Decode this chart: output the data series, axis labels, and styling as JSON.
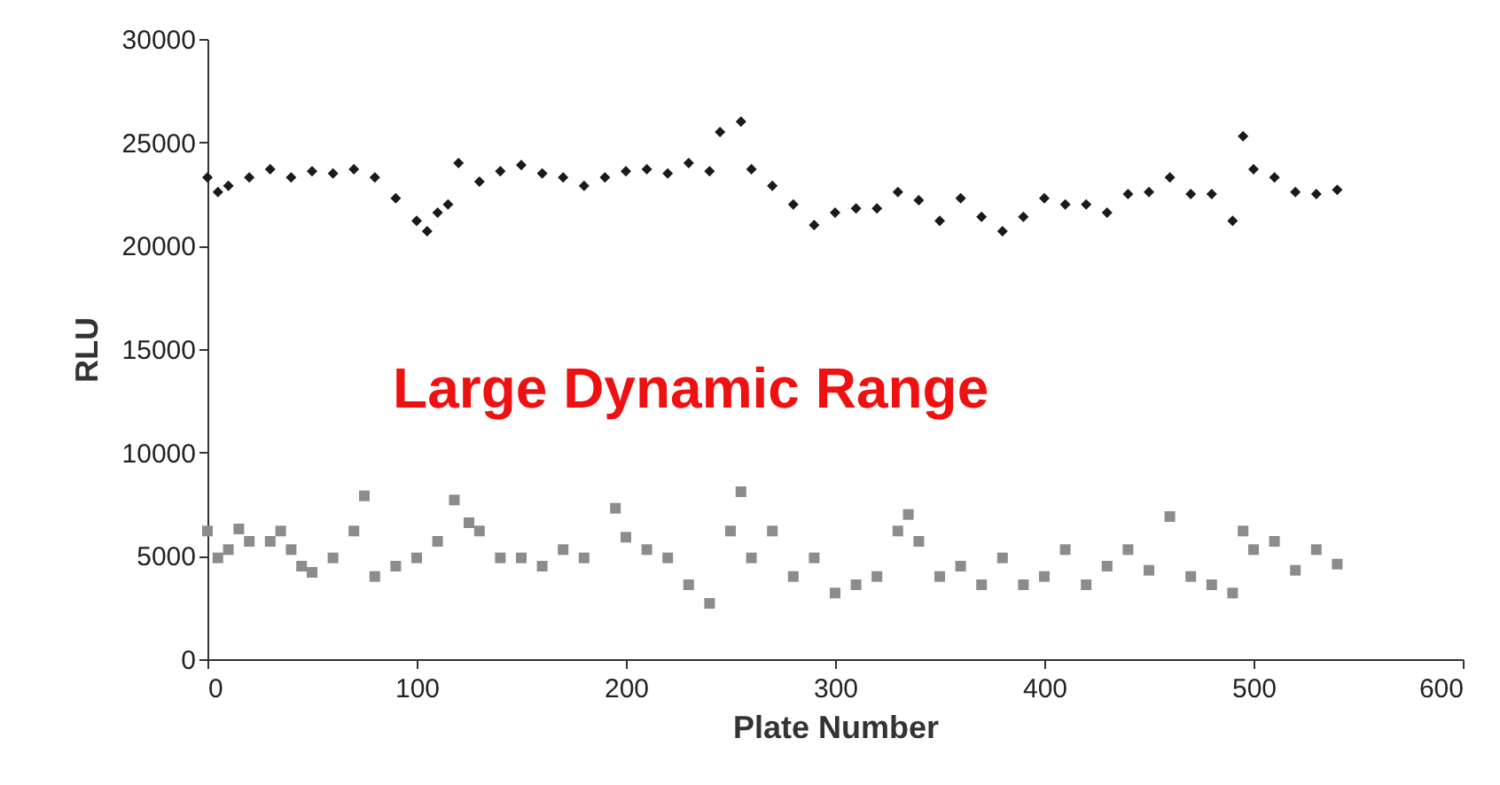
{
  "chart_data": {
    "type": "scatter",
    "xlabel": "Plate Number",
    "ylabel": "RLU",
    "annotations": [
      "Large Dynamic Range"
    ],
    "xlim": [
      0,
      600
    ],
    "xticks": [
      0,
      100,
      200,
      300,
      400,
      500,
      600
    ],
    "ylim": [
      0,
      30000
    ],
    "yticks": [
      0,
      5000,
      10000,
      15000,
      20000,
      25000,
      30000
    ],
    "grid": false,
    "series": [
      {
        "color": "#1a1a1a",
        "marker": "diamond",
        "x": [
          0,
          5,
          10,
          20,
          30,
          40,
          50,
          60,
          70,
          80,
          90,
          100,
          105,
          110,
          115,
          120,
          130,
          140,
          150,
          160,
          170,
          180,
          190,
          200,
          210,
          220,
          230,
          240,
          245,
          255,
          260,
          270,
          280,
          290,
          300,
          310,
          320,
          330,
          340,
          350,
          360,
          370,
          380,
          390,
          400,
          410,
          420,
          430,
          440,
          450,
          460,
          470,
          480,
          490,
          495,
          500,
          510,
          520,
          530,
          540
        ],
        "values": [
          23300,
          22600,
          22900,
          23300,
          23700,
          23300,
          23600,
          23500,
          23700,
          23300,
          22300,
          21200,
          20700,
          21600,
          22000,
          24000,
          23100,
          23600,
          23900,
          23500,
          23300,
          22900,
          23300,
          23600,
          23700,
          23500,
          24000,
          23600,
          25500,
          26000,
          23700,
          22900,
          22000,
          21000,
          21600,
          21800,
          21800,
          22600,
          22200,
          21200,
          22300,
          21400,
          20700,
          21400,
          22300,
          22000,
          22000,
          21600,
          22500,
          22600,
          23300,
          22500,
          22500,
          21200,
          25300,
          23700,
          23300,
          22600,
          22500,
          22700
        ]
      },
      {
        "color": "#8c8c8c",
        "marker": "square",
        "x": [
          0,
          5,
          10,
          15,
          20,
          30,
          35,
          40,
          45,
          50,
          60,
          70,
          75,
          80,
          90,
          100,
          110,
          118,
          125,
          130,
          140,
          150,
          160,
          170,
          180,
          195,
          200,
          210,
          220,
          230,
          240,
          250,
          255,
          260,
          270,
          280,
          290,
          300,
          310,
          320,
          330,
          335,
          340,
          350,
          360,
          370,
          380,
          390,
          400,
          410,
          420,
          430,
          440,
          450,
          460,
          470,
          480,
          490,
          495,
          500,
          510,
          520,
          530,
          540
        ],
        "values": [
          6200,
          4900,
          5300,
          6300,
          5700,
          5700,
          6200,
          5300,
          4500,
          4200,
          4900,
          6200,
          7900,
          4000,
          4500,
          4900,
          5700,
          7700,
          6600,
          6200,
          4900,
          4900,
          4500,
          5300,
          4900,
          7300,
          5900,
          5300,
          4900,
          3600,
          2700,
          6200,
          8100,
          4900,
          6200,
          4000,
          4900,
          3200,
          3600,
          4000,
          6200,
          7000,
          5700,
          4000,
          4500,
          3600,
          4900,
          3600,
          4000,
          5300,
          3600,
          4500,
          5300,
          4300,
          6900,
          4000,
          3600,
          3200,
          6200,
          5300,
          5700,
          4300,
          5300,
          4600
        ]
      }
    ]
  }
}
